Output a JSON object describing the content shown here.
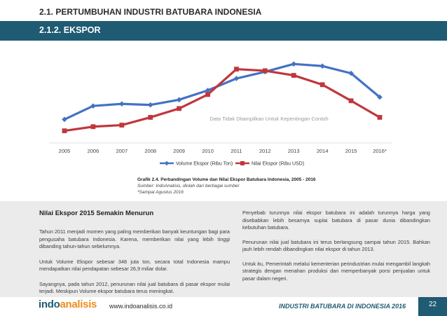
{
  "section": {
    "title": "2.1. PERTUMBUHAN INDUSTRI BATUBARA INDONESIA",
    "subtitle": "2.1.2. EKSPOR"
  },
  "colors": {
    "header_bar": "#1f5b73",
    "series_volume": "#4472c4",
    "series_nilai": "#c0373c",
    "logo_primary": "#1f5b73",
    "logo_accent": "#f08c1e"
  },
  "chart_data": {
    "type": "line",
    "categories": [
      "2005",
      "2006",
      "2007",
      "2008",
      "2009",
      "2010",
      "2011",
      "2012",
      "2013",
      "2014",
      "2015",
      "2016*"
    ],
    "series": [
      {
        "name": "Volume Ekspor (Ribu Ton)",
        "values": [
          130,
          156,
          160,
          158,
          168,
          186,
          209,
          222,
          237,
          233,
          219,
          173
        ],
        "marker": "diamond"
      },
      {
        "name": "Nilai Ekspor (Ribu USD)",
        "values": [
          108,
          116,
          119,
          134,
          151,
          178,
          227,
          224,
          215,
          197,
          166,
          134
        ],
        "marker": "square"
      }
    ],
    "ylim": [
      90,
      255
    ],
    "watermark": "Data Tidak Ditampilkan Untuk Kepentingan Contoh",
    "legend_position": "bottom",
    "grid": false
  },
  "caption": {
    "title": "Grafik 2.4. Perbandingan Volume dan Nilai Ekspor Batubara Indonesia, 2005 - 2016",
    "source": "Sumber: IndoAnalisis, diolah dari berbagai sumber",
    "note": "*Sampai Agustus 2016"
  },
  "left_column": {
    "heading": "Nilai Ekspor 2015 Semakin Menurun",
    "paragraphs": [
      "Tahun 2011 menjadi momen yang paling memberikan banyak keuntungan bagi para pengusaha batubara Indonesia. Karena, memberikan nilai yang lebih tinggi dibanding tahun-tahun sebelumnya.",
      "Untuk Volume Ekspor sebesar 348 juta ton, secara total Indonesia mampu mendapatkan nilai pendapatan sebesar 26,9 miliar dolar.",
      "Sayangnya, pada tahun 2012, penurunan nilai jual batubara di pasar ekspor mulai terjadi. Meskipun Volume ekspor batubara terus meningkat."
    ]
  },
  "right_column": {
    "paragraphs": [
      "Penyebab turunnya nilai ekspor batubara ini adalah turunnya harga yang disebabkan lebih besarnya suplai batubara di pasar dunia dibandingkan kebutuhan batubara.",
      "Penurunan nilai jual batubara ini terus berlangsung sampai tahun 2015. Bahkan jauh lebih rendah dibandingkan nilai ekspor di tahun 2013.",
      "Untuk itu, Pemerintah melalui kementerian perindustrian mulai mengambil langkah strategis dengan menahan produksi dan memperbanyak porsi penjualan untuk pasar dalam negeri."
    ]
  },
  "footer": {
    "logo_part1": "indo",
    "logo_part2": "analisis",
    "url": "www.indoanalisis.co.id",
    "publication": "INDUSTRI BATUBARA DI INDONESIA 2016",
    "page_number": "22"
  }
}
